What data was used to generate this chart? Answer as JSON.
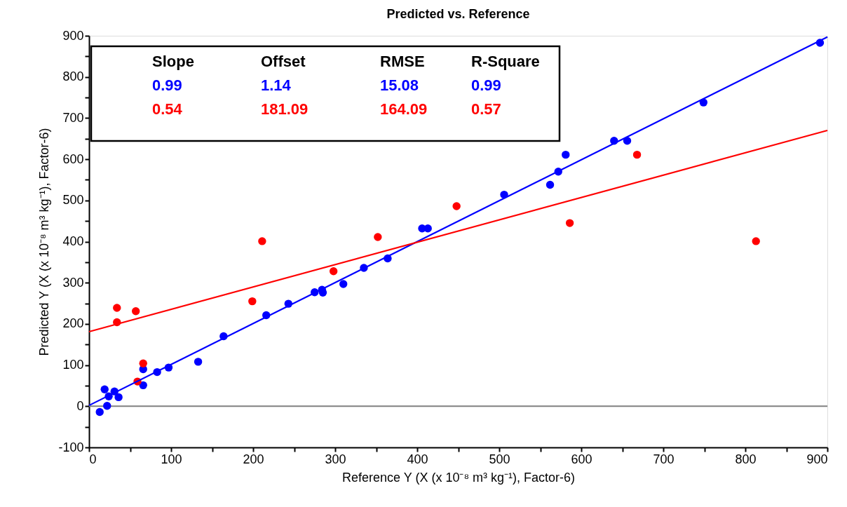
{
  "chart_data": {
    "type": "scatter",
    "title": "Predicted vs. Reference",
    "xlabel": "Reference  Y (X (x 10⁻⁸ m³ kg⁻¹), Factor-6)",
    "ylabel": "Predicted  Y (X (x 10⁻⁸ m³ kg⁻¹), Factor-6)",
    "xlim": [
      0,
      900
    ],
    "ylim": [
      -100,
      900
    ],
    "xticks": [
      0,
      {
        "value": 50,
        "label": null
      },
      100,
      {
        "value": 150,
        "label": null
      },
      200,
      {
        "value": 250,
        "label": null
      },
      300,
      {
        "value": 350,
        "label": null
      },
      400,
      {
        "value": 450,
        "label": null
      },
      500,
      {
        "value": 550,
        "label": null
      },
      600,
      {
        "value": 650,
        "label": null
      },
      700,
      {
        "value": 750,
        "label": null
      },
      800,
      {
        "value": 850,
        "label": null
      },
      900
    ],
    "yticks": [
      -100,
      {
        "value": -50,
        "label": null
      },
      0,
      {
        "value": 50,
        "label": null
      },
      100,
      {
        "value": 150,
        "label": null
      },
      200,
      {
        "value": 250,
        "label": null
      },
      300,
      {
        "value": 350,
        "label": null
      },
      400,
      {
        "value": 450,
        "label": null
      },
      500,
      {
        "value": 550,
        "label": null
      },
      600,
      {
        "value": 650,
        "label": null
      },
      700,
      {
        "value": 750,
        "label": null
      },
      800,
      {
        "value": 850,
        "label": null
      },
      900
    ],
    "grid": false,
    "marker": "circle",
    "series": [
      {
        "color": "#0000ff",
        "x": [
          13,
          22,
          19,
          24,
          31,
          36,
          66,
          66,
          83,
          97,
          133,
          164,
          216,
          243,
          275,
          284,
          285,
          310,
          335,
          364,
          406,
          413,
          506,
          562,
          572,
          581,
          640,
          656,
          749,
          891
        ],
        "values": [
          -14,
          1,
          41,
          24,
          36,
          22,
          90,
          51,
          83,
          94,
          108,
          170,
          221,
          249,
          277,
          283,
          276,
          297,
          336,
          359,
          432,
          432,
          514,
          538,
          570,
          611,
          645,
          645,
          738,
          883
        ]
      },
      {
        "color": "#ff0000",
        "x": [
          34,
          34,
          57,
          59,
          66,
          199,
          211,
          298,
          352,
          448,
          586,
          668,
          813
        ],
        "values": [
          239,
          204,
          231,
          60,
          104,
          255,
          401,
          328,
          411,
          486,
          445,
          611,
          401
        ]
      },
      {
        "type": "line",
        "color": "#0000ff",
        "x": [
          0,
          900
        ],
        "values": [
          2,
          897
        ],
        "line_style": "solid",
        "marker": "none"
      },
      {
        "type": "line",
        "color": "#ff0000",
        "x": [
          0,
          900
        ],
        "values": [
          181,
          670
        ],
        "line_style": "solid",
        "marker": "none"
      }
    ],
    "ref_lines": [
      {
        "axis": "y",
        "value": 0,
        "color": "#808080"
      }
    ],
    "annotations": [
      "Slope",
      "Offset",
      "RMSE",
      "R-Square",
      "0.99",
      "1.14",
      "15.08",
      "0.99",
      "0.54",
      "181.09",
      "164.09",
      "0.57"
    ]
  }
}
